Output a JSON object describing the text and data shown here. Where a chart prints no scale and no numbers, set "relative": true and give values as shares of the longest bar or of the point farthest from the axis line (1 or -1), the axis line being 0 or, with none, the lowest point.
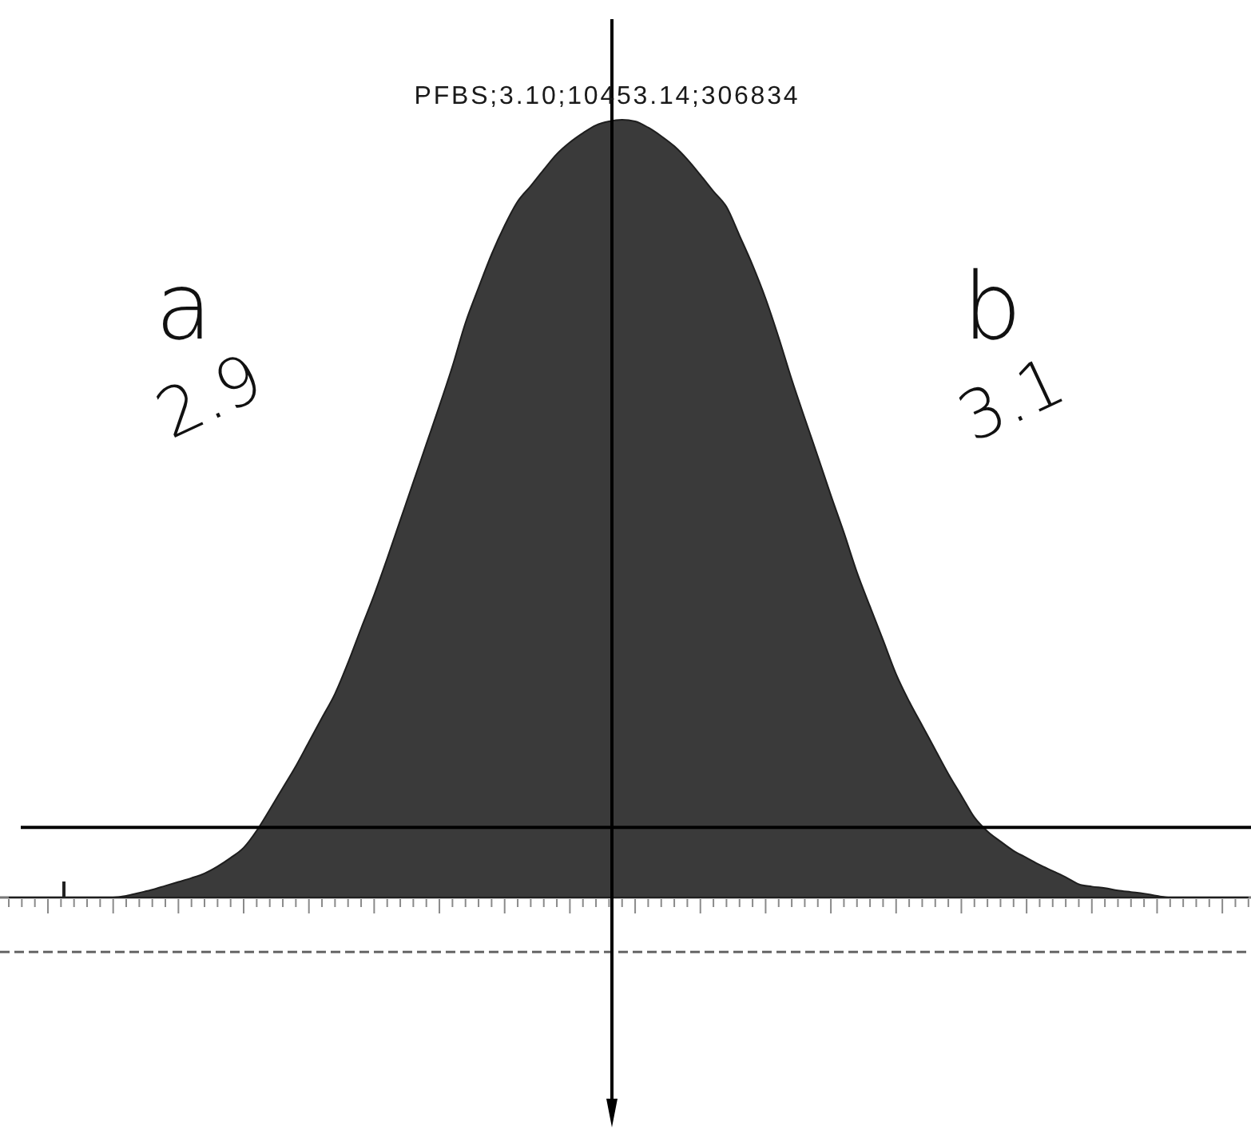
{
  "chart_data": {
    "type": "area",
    "relative": true,
    "categories": [
      null,
      null,
      null,
      null,
      null,
      null,
      null,
      null,
      null,
      null,
      null,
      null,
      null,
      null,
      null,
      null,
      null,
      null,
      null,
      null,
      null,
      null,
      null,
      null,
      null,
      null,
      null,
      null,
      null,
      null,
      null,
      null,
      null,
      null,
      null,
      null,
      null,
      null,
      null,
      null,
      null,
      null,
      null,
      null,
      null,
      null,
      null,
      null,
      null,
      null,
      null,
      null,
      null,
      null,
      null,
      null,
      null,
      null,
      null,
      null,
      null,
      null,
      null,
      null,
      null,
      null,
      null,
      null,
      null,
      null,
      null,
      null,
      null,
      null,
      null,
      null,
      null,
      null,
      null,
      null,
      null,
      null,
      null,
      null,
      null,
      null,
      null,
      null,
      null,
      null,
      null,
      null,
      null,
      null,
      null,
      null
    ],
    "values": [
      0,
      0,
      0,
      0,
      0,
      0,
      0,
      0,
      0,
      0.002,
      0.006,
      0.01,
      0.015,
      0.02,
      0.025,
      0.031,
      0.04,
      0.051,
      0.064,
      0.086,
      0.113,
      0.141,
      0.169,
      0.2,
      0.231,
      0.262,
      0.302,
      0.346,
      0.389,
      0.436,
      0.485,
      0.534,
      0.583,
      0.632,
      0.683,
      0.739,
      0.784,
      0.827,
      0.864,
      0.895,
      0.915,
      0.936,
      0.956,
      0.971,
      0.983,
      0.993,
      0.998,
      1,
      0.998,
      0.99,
      0.979,
      0.966,
      0.949,
      0.929,
      0.908,
      0.888,
      0.851,
      0.813,
      0.77,
      0.72,
      0.666,
      0.616,
      0.567,
      0.517,
      0.469,
      0.418,
      0.374,
      0.331,
      0.287,
      0.252,
      0.221,
      0.19,
      0.159,
      0.131,
      0.103,
      0.085,
      0.072,
      0.06,
      0.051,
      0.042,
      0.034,
      0.026,
      0.017,
      0.014,
      0.012,
      0.009,
      0.007,
      0.005,
      0.002,
      0,
      0,
      0,
      0,
      0,
      0,
      0
    ],
    "color": "#3a3a3a",
    "annotations": [
      "PFBS;3.10;10453.14;306834",
      "a",
      "2.9",
      "b",
      "3.1"
    ],
    "ref_lines": [
      {
        "axis": "y",
        "value": 0.09,
        "color": "#000000"
      },
      {
        "axis": "y",
        "value": -0.07,
        "color": "#666666",
        "line_style": "dashed"
      }
    ]
  }
}
